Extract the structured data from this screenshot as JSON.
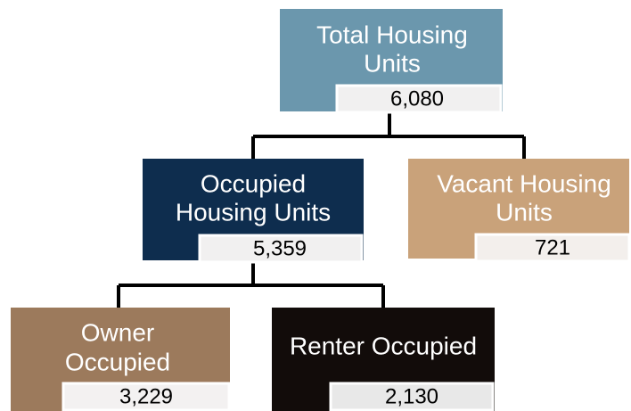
{
  "nodes": [
    {
      "label": [
        "Total Housing",
        "Units"
      ],
      "value": "6,080"
    },
    {
      "label": [
        "Occupied",
        "Housing Units"
      ],
      "value": "5,359"
    },
    {
      "label": [
        "Vacant Housing",
        "Units"
      ],
      "value": "721"
    },
    {
      "label": [
        "Owner",
        "Occupied"
      ],
      "value": "3,229"
    },
    {
      "label": [
        "Renter Occupied"
      ],
      "value": "2,130"
    }
  ]
}
